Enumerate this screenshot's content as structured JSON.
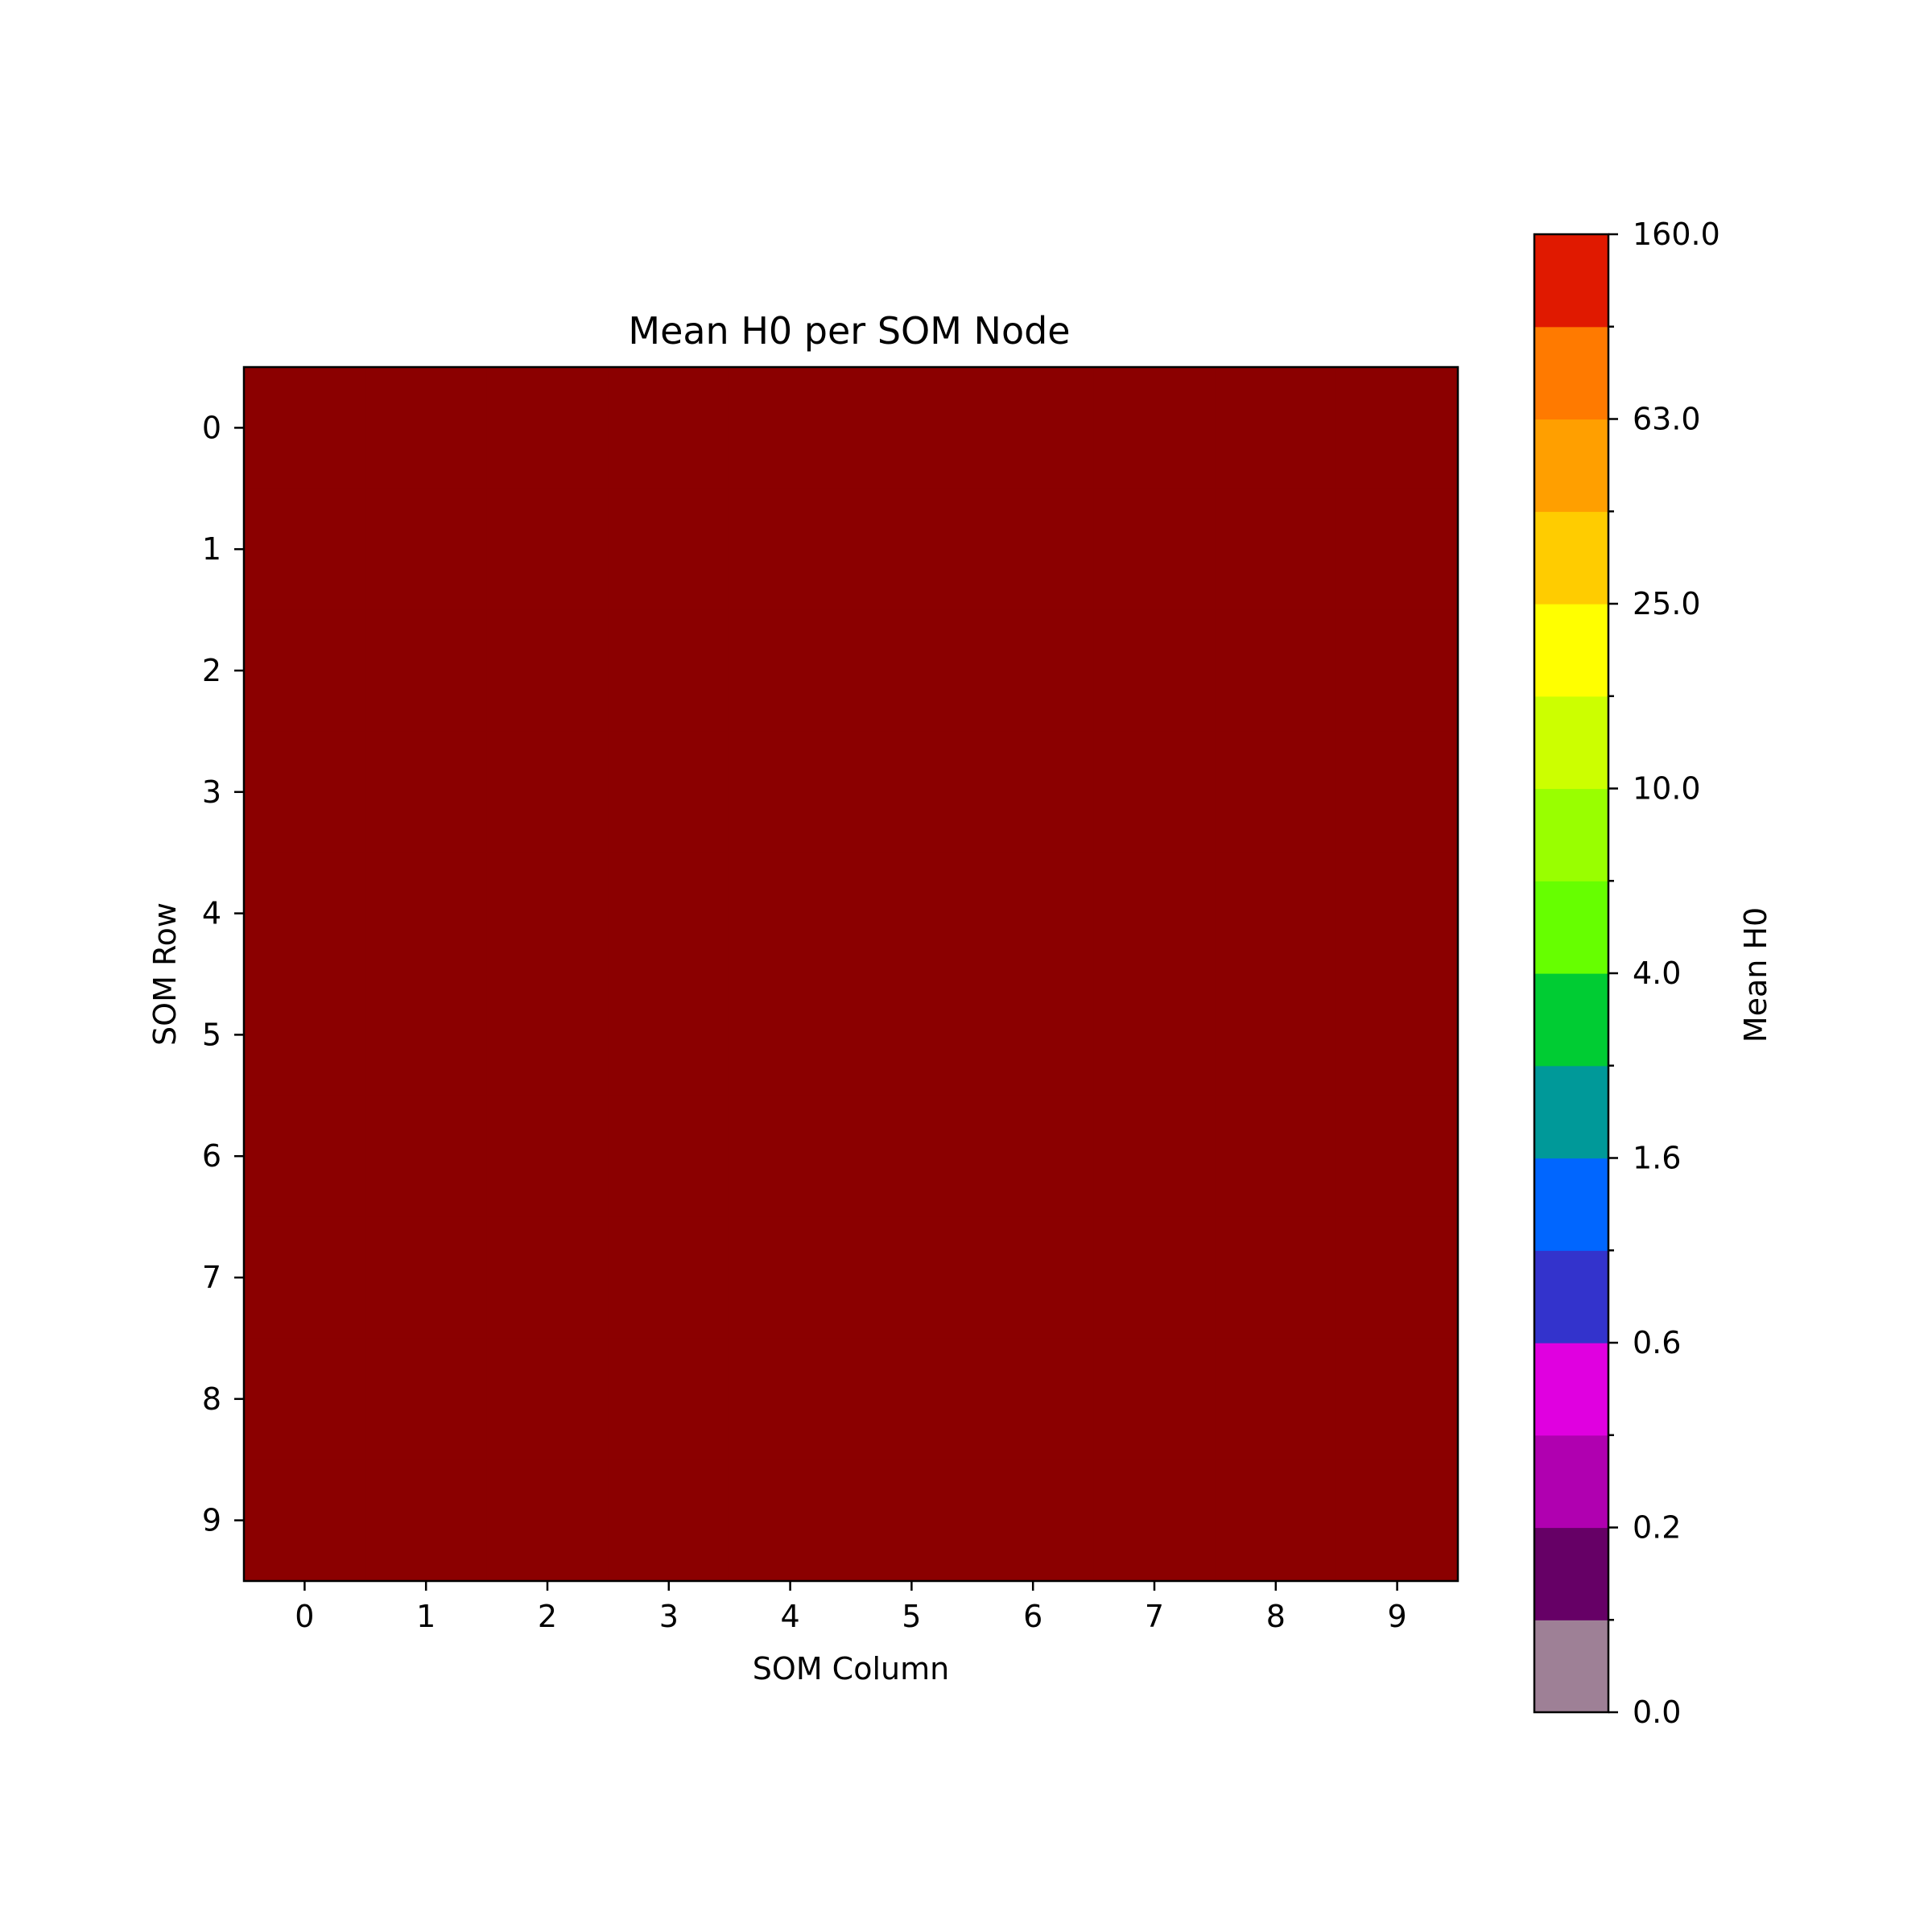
{
  "chart_data": {
    "type": "heatmap",
    "title": "Mean H0 per SOM Node",
    "xlabel": "SOM Column",
    "ylabel": "SOM Row",
    "x_ticks": [
      "0",
      "1",
      "2",
      "3",
      "4",
      "5",
      "6",
      "7",
      "8",
      "9"
    ],
    "y_ticks": [
      "0",
      "1",
      "2",
      "3",
      "4",
      "5",
      "6",
      "7",
      "8",
      "9"
    ],
    "rows": 10,
    "cols": 10,
    "values": [
      [
        160,
        160,
        160,
        160,
        160,
        160,
        160,
        160,
        160,
        160
      ],
      [
        160,
        160,
        160,
        160,
        160,
        160,
        160,
        160,
        160,
        160
      ],
      [
        160,
        160,
        160,
        160,
        160,
        160,
        160,
        160,
        160,
        160
      ],
      [
        160,
        160,
        160,
        160,
        160,
        160,
        160,
        160,
        160,
        160
      ],
      [
        160,
        160,
        160,
        160,
        160,
        160,
        160,
        160,
        160,
        160
      ],
      [
        160,
        160,
        160,
        160,
        160,
        160,
        160,
        160,
        160,
        160
      ],
      [
        160,
        160,
        160,
        160,
        160,
        160,
        160,
        160,
        160,
        160
      ],
      [
        160,
        160,
        160,
        160,
        160,
        160,
        160,
        160,
        160,
        160
      ],
      [
        160,
        160,
        160,
        160,
        160,
        160,
        160,
        160,
        160,
        160
      ],
      [
        160,
        160,
        160,
        160,
        160,
        160,
        160,
        160,
        160,
        160
      ]
    ],
    "over_color": "#8b0000",
    "colorbar": {
      "label": "Mean H0",
      "tick_labels": [
        "0.0",
        "0.2",
        "0.6",
        "1.6",
        "4.0",
        "10.0",
        "25.0",
        "63.0",
        "160.0"
      ],
      "colors": [
        "#9e8096",
        "#660066",
        "#b000b0",
        "#e000e0",
        "#3333cc",
        "#0066ff",
        "#009999",
        "#00cc33",
        "#66ff00",
        "#99ff00",
        "#ccff00",
        "#ffff00",
        "#ffcc00",
        "#ff9f00",
        "#ff7a00",
        "#e01900"
      ]
    }
  }
}
